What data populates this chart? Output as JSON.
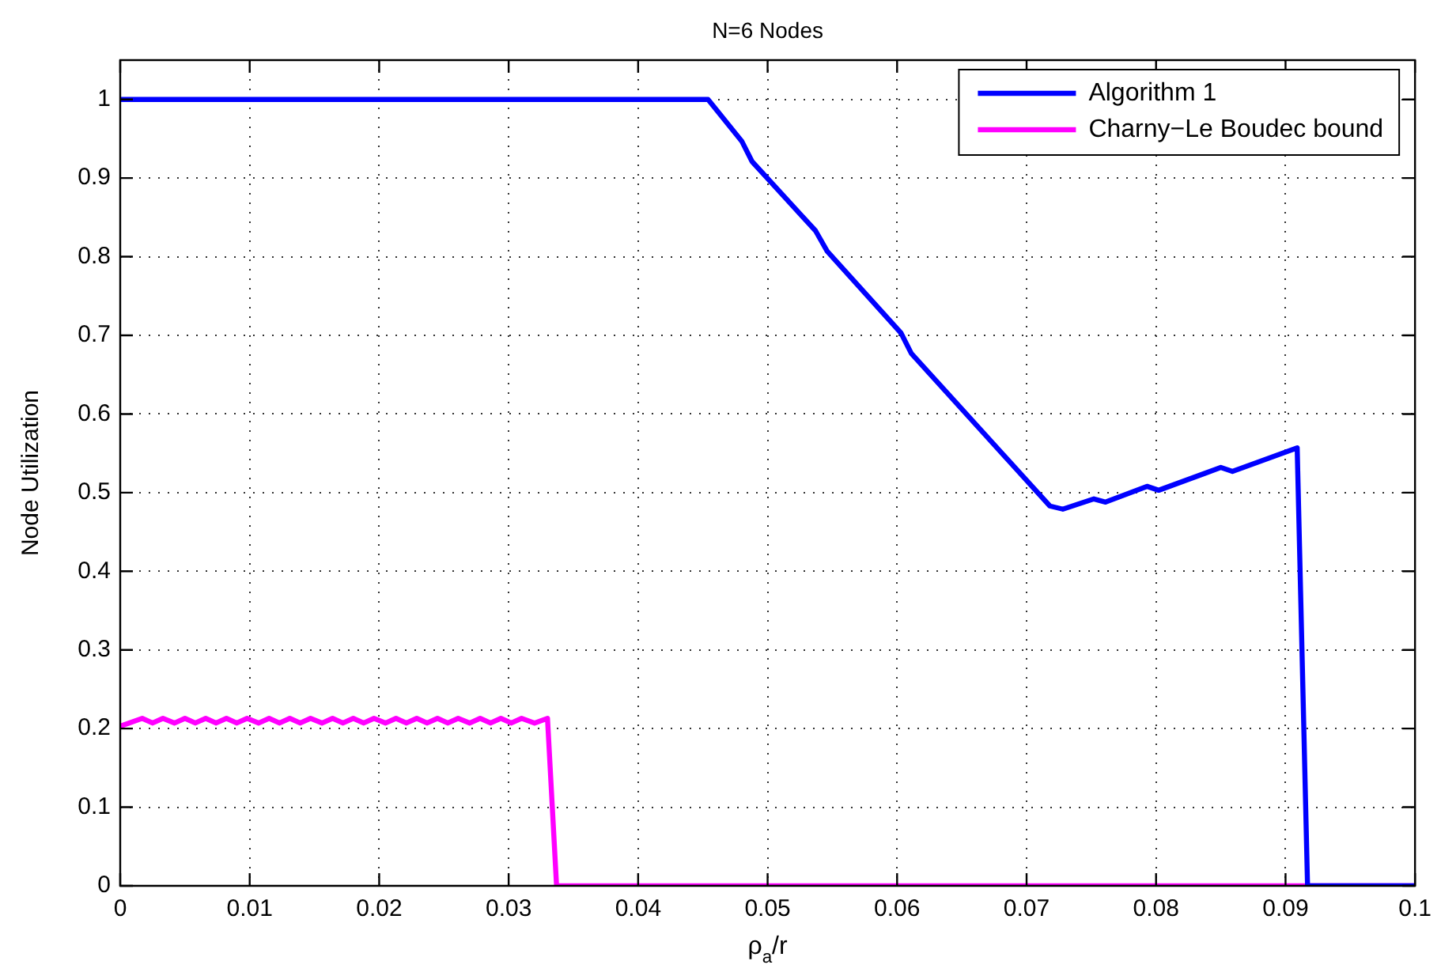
{
  "chart_data": {
    "type": "line",
    "title": "N=6 Nodes",
    "xlabel": "ρ$_{a}$/r",
    "ylabel": "Node Utilization",
    "xlim": [
      0,
      0.1
    ],
    "xticks": [
      0,
      0.01,
      0.02,
      0.03,
      0.04,
      0.05,
      0.06,
      0.07,
      0.08,
      0.09,
      0.1
    ],
    "ylim": [
      0,
      1.05
    ],
    "yticks": [
      0,
      0.1,
      0.2,
      0.3,
      0.4,
      0.5,
      0.6,
      0.7,
      0.8,
      0.9,
      1
    ],
    "grid": true,
    "legend": "top right",
    "marker": "none",
    "line_style": "solid",
    "series": [
      {
        "name": "Algorithm 1",
        "color": "#0000ff",
        "x": [
          0,
          0.0454,
          0.048,
          0.0488,
          0.0537,
          0.0546,
          0.0603,
          0.0611,
          0.0718,
          0.0728,
          0.0752,
          0.0761,
          0.0793,
          0.0802,
          0.085,
          0.0859,
          0.0909,
          0.0917,
          0.1
        ],
        "values": [
          1,
          1,
          0.947,
          0.921,
          0.833,
          0.807,
          0.703,
          0.677,
          0.483,
          0.479,
          0.492,
          0.488,
          0.508,
          0.503,
          0.532,
          0.527,
          0.557,
          0,
          0
        ]
      },
      {
        "name": "Charny−Le Boudec bound",
        "color": "#ff00ff",
        "x": [
          0,
          0.0017,
          0.0025,
          0.0033,
          0.0042,
          0.005,
          0.0058,
          0.0066,
          0.0074,
          0.0082,
          0.009,
          0.0098,
          0.0107,
          0.0115,
          0.0123,
          0.0131,
          0.0139,
          0.0147,
          0.0156,
          0.0164,
          0.0172,
          0.018,
          0.0188,
          0.0196,
          0.0205,
          0.0213,
          0.0221,
          0.0229,
          0.0237,
          0.0245,
          0.0253,
          0.0261,
          0.027,
          0.0278,
          0.0286,
          0.0294,
          0.0302,
          0.031,
          0.032,
          0.033,
          0.0337,
          0.1
        ],
        "values": [
          0.203,
          0.213,
          0.207,
          0.213,
          0.207,
          0.213,
          0.207,
          0.213,
          0.207,
          0.213,
          0.207,
          0.213,
          0.207,
          0.213,
          0.207,
          0.213,
          0.207,
          0.213,
          0.207,
          0.213,
          0.207,
          0.213,
          0.207,
          0.213,
          0.207,
          0.213,
          0.207,
          0.213,
          0.207,
          0.213,
          0.207,
          0.213,
          0.207,
          0.213,
          0.207,
          0.213,
          0.207,
          0.213,
          0.207,
          0.213,
          0,
          0
        ]
      }
    ]
  }
}
